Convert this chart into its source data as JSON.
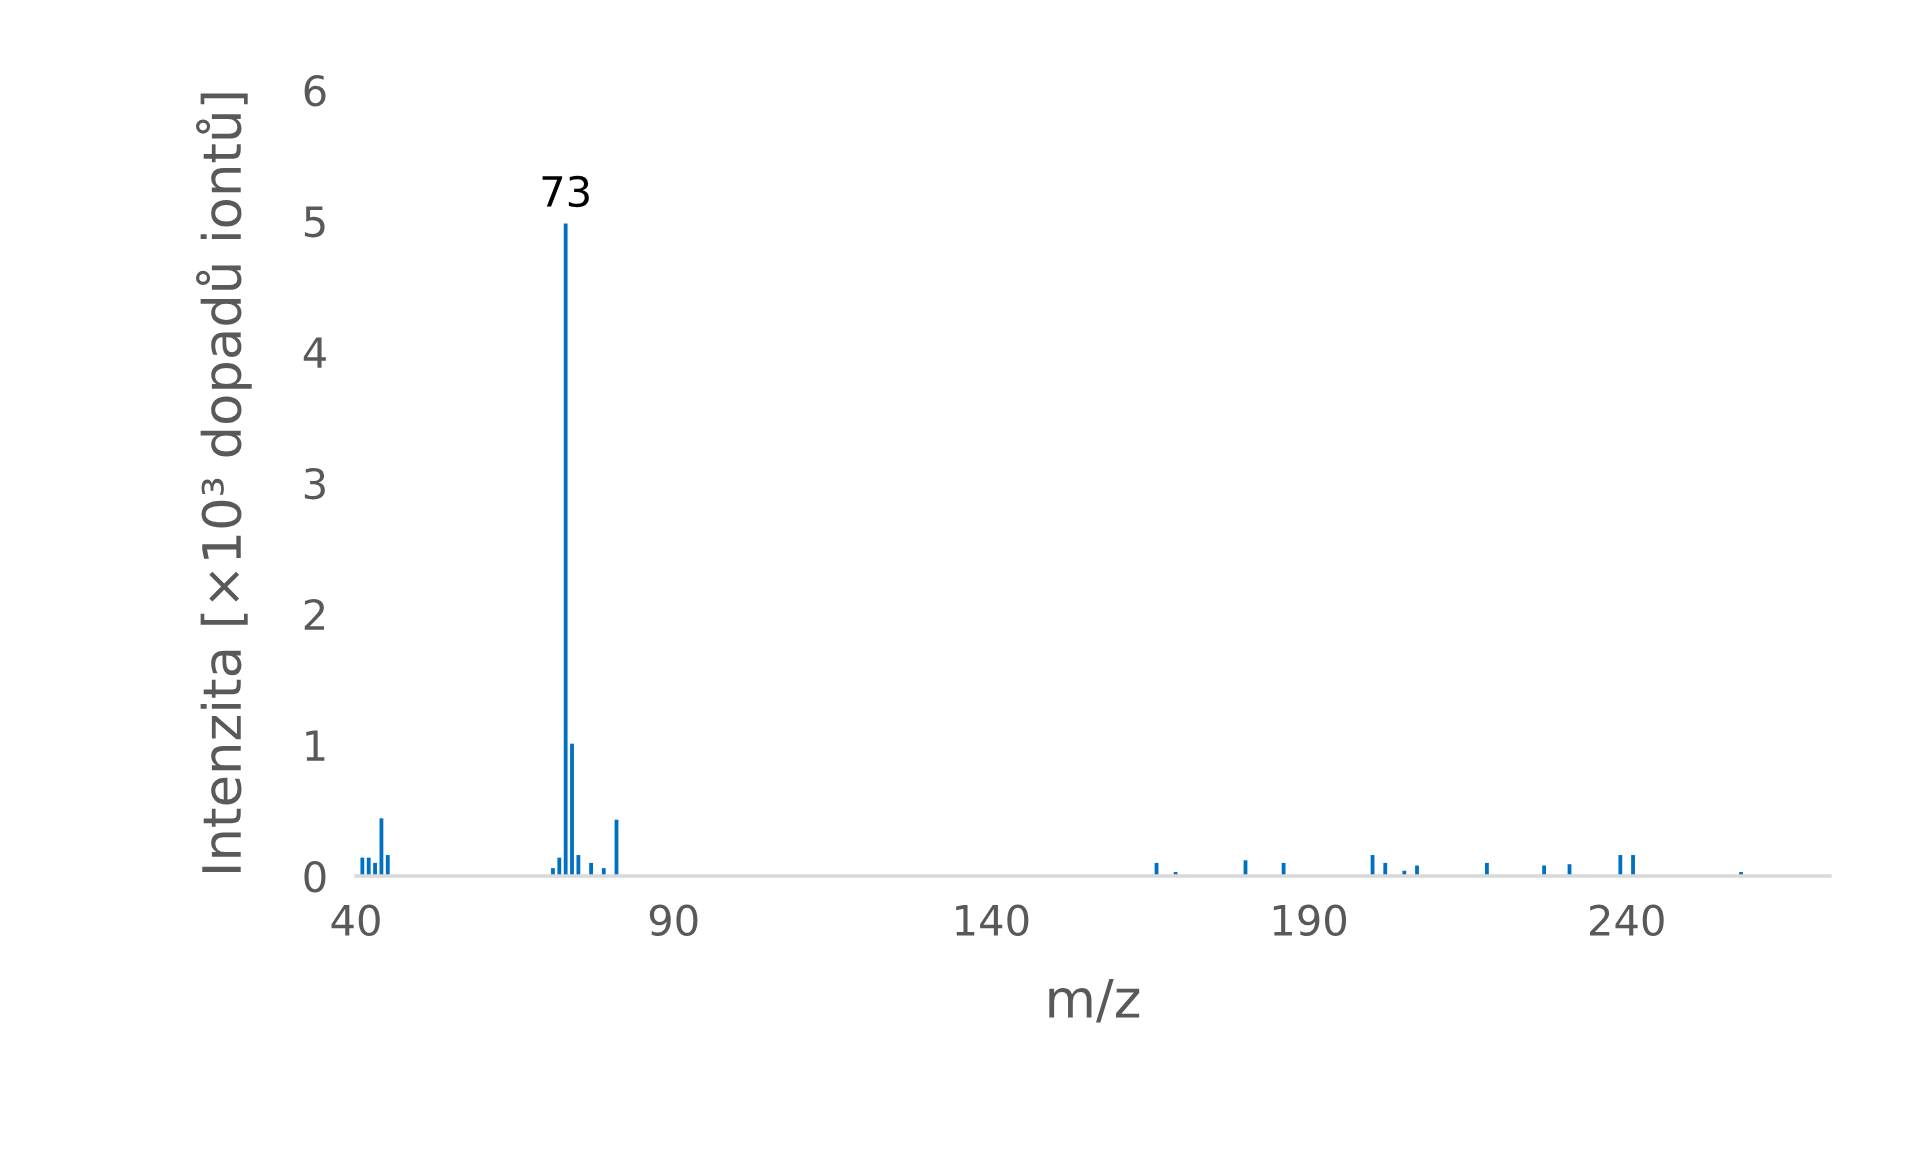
{
  "chart_data": {
    "type": "bar",
    "xlabel": "m/z",
    "ylabel": "Intenzita [×10³ dopadů iontů]",
    "x": [
      41,
      42,
      43,
      44,
      45,
      71,
      72,
      73,
      74,
      75,
      77,
      79,
      81,
      166,
      169,
      180,
      186,
      200,
      202,
      205,
      207,
      218,
      227,
      231,
      239,
      241,
      258
    ],
    "values": [
      0.14,
      0.14,
      0.1,
      0.44,
      0.16,
      0.06,
      0.14,
      4.98,
      1.01,
      0.16,
      0.1,
      0.06,
      0.43,
      0.1,
      0.03,
      0.12,
      0.1,
      0.16,
      0.1,
      0.04,
      0.08,
      0.1,
      0.08,
      0.09,
      0.16,
      0.16,
      0.03
    ],
    "color": "#0070c0",
    "xlim": [
      40,
      272
    ],
    "xticks": [
      40,
      90,
      140,
      190,
      240
    ],
    "ylim": [
      0,
      6
    ],
    "yticks": [
      0,
      1,
      2,
      3,
      4,
      5,
      6
    ],
    "annotations": [
      {
        "text": "73",
        "x": 73,
        "y": 4.98
      }
    ],
    "grid": false,
    "legend": false
  }
}
